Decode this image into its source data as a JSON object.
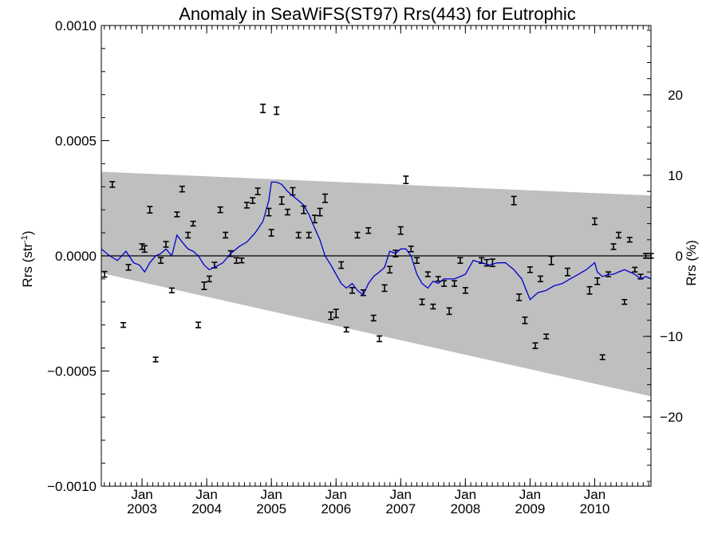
{
  "chart_data": {
    "type": "scatter",
    "title": "Anomaly in SeaWiFS(ST97) Rrs(443) for Eutrophic",
    "ylabel_left": {
      "main": "Rrs (str",
      "sup": "-1",
      "close": ")"
    },
    "ylabel_right": "Rrs (%)",
    "ylim": [
      -0.001,
      0.001
    ],
    "ylim_right": [
      -28.6,
      28.6
    ],
    "xlim": [
      2002.37,
      2010.87
    ],
    "left_ticks": [
      {
        "value": 0.001,
        "label": "0.0010"
      },
      {
        "value": 0.0005,
        "label": "0.0005"
      },
      {
        "value": 0.0,
        "label": "0.0000"
      },
      {
        "value": -0.0005,
        "label": "−0.0005"
      },
      {
        "value": -0.001,
        "label": "−0.0010"
      }
    ],
    "right_ticks": [
      {
        "value": 20,
        "label": "20"
      },
      {
        "value": 10,
        "label": "10"
      },
      {
        "value": 0,
        "label": "0"
      },
      {
        "value": -10,
        "label": "−10"
      },
      {
        "value": -20,
        "label": "−20"
      }
    ],
    "x_ticks": [
      {
        "value": 2003.0,
        "month": "Jan",
        "year": "2003"
      },
      {
        "value": 2004.0,
        "month": "Jan",
        "year": "2004"
      },
      {
        "value": 2005.0,
        "month": "Jan",
        "year": "2005"
      },
      {
        "value": 2006.0,
        "month": "Jan",
        "year": "2006"
      },
      {
        "value": 2007.0,
        "month": "Jan",
        "year": "2007"
      },
      {
        "value": 2008.0,
        "month": "Jan",
        "year": "2008"
      },
      {
        "value": 2009.0,
        "month": "Jan",
        "year": "2009"
      },
      {
        "value": 2010.0,
        "month": "Jan",
        "year": "2010"
      }
    ],
    "confidence_band": {
      "x": [
        2002.37,
        2010.87
      ],
      "upper": [
        0.000365,
        0.000262
      ],
      "lower": [
        -7.5e-05,
        -0.00061
      ]
    },
    "colors": {
      "band": "#bfbfbf",
      "line": "#0000cc",
      "points": "#000000",
      "zero_line": "#000000"
    },
    "points": {
      "x": [
        2002.42,
        2002.54,
        2002.71,
        2002.79,
        2003.0,
        2003.04,
        2003.12,
        2003.21,
        2003.29,
        2003.37,
        2003.46,
        2003.54,
        2003.62,
        2003.71,
        2003.79,
        2003.87,
        2003.96,
        2004.04,
        2004.12,
        2004.21,
        2004.29,
        2004.37,
        2004.46,
        2004.54,
        2004.62,
        2004.71,
        2004.79,
        2004.87,
        2004.96,
        2005.0,
        2005.08,
        2005.16,
        2005.25,
        2005.33,
        2005.42,
        2005.5,
        2005.58,
        2005.67,
        2005.75,
        2005.83,
        2005.92,
        2006.0,
        2006.08,
        2006.16,
        2006.25,
        2006.33,
        2006.42,
        2006.5,
        2006.58,
        2006.67,
        2006.75,
        2006.83,
        2006.92,
        2007.0,
        2007.08,
        2007.16,
        2007.25,
        2007.33,
        2007.42,
        2007.5,
        2007.58,
        2007.67,
        2007.75,
        2007.83,
        2007.92,
        2008.0,
        2008.25,
        2008.33,
        2008.42,
        2008.75,
        2008.83,
        2008.92,
        2009.0,
        2009.08,
        2009.16,
        2009.25,
        2009.33,
        2009.58,
        2009.92,
        2010.0,
        2010.04,
        2010.12,
        2010.21,
        2010.29,
        2010.37,
        2010.46,
        2010.54,
        2010.62,
        2010.71,
        2010.79,
        2010.87
      ],
      "y": [
        -8e-05,
        0.00031,
        -0.0003,
        -5e-05,
        4e-05,
        3e-05,
        0.0002,
        -0.00045,
        -2e-05,
        5e-05,
        -0.00015,
        0.00018,
        0.00029,
        9e-05,
        0.00014,
        -0.0003,
        -0.00013,
        -0.0001,
        -4e-05,
        0.0002,
        9e-05,
        1e-05,
        -2e-05,
        -2e-05,
        0.00022,
        0.00024,
        0.00028,
        0.00064,
        0.00019,
        0.0001,
        0.00063,
        0.00024,
        0.00019,
        0.00028,
        9e-05,
        0.0002,
        9e-05,
        0.00016,
        0.00019,
        0.00025,
        -0.00026,
        -0.00025,
        -4e-05,
        -0.00032,
        -0.00015,
        9e-05,
        -0.00016,
        0.00011,
        -0.00027,
        -0.00036,
        -0.00014,
        -6e-05,
        1e-05,
        0.00011,
        0.00033,
        3e-05,
        -2e-05,
        -0.0002,
        -8e-05,
        -0.00022,
        -0.0001,
        -0.00012,
        -0.00024,
        -0.00012,
        -2e-05,
        -0.00015,
        -2e-05,
        -3e-05,
        -3e-05,
        0.00024,
        -0.00018,
        -0.00028,
        -6e-05,
        -0.00039,
        -0.0001,
        -0.00035,
        -2e-05,
        -7e-05,
        -0.00015,
        0.00015,
        -0.00011,
        -0.00044,
        -8e-05,
        4e-05,
        9e-05,
        -0.0002,
        7e-05,
        -6e-05,
        -9e-05,
        0.0,
        0.0
      ],
      "err": [
        1.2e-05,
        1.2e-05,
        1e-05,
        1.2e-05,
        1.2e-05,
        1.4e-05,
        1.4e-05,
        1e-05,
        1.2e-05,
        1.2e-05,
        1e-05,
        1e-05,
        1.2e-05,
        1.2e-05,
        1e-05,
        1.2e-05,
        1.6e-05,
        1.2e-05,
        1.2e-05,
        1.2e-05,
        1.2e-05,
        1.2e-05,
        1.2e-05,
        1e-05,
        1.2e-05,
        1.2e-05,
        1.4e-05,
        1.8e-05,
        1.6e-05,
        1.4e-05,
        1.6e-05,
        1.6e-05,
        1.2e-05,
        1.6e-05,
        1.2e-05,
        1.6e-05,
        1.2e-05,
        1.6e-05,
        1.6e-05,
        1.8e-05,
        1.6e-05,
        1.8e-05,
        1.4e-05,
        1e-05,
        1.2e-05,
        1.2e-05,
        1.2e-05,
        1.2e-05,
        1.2e-05,
        1.2e-05,
        1.4e-05,
        1.4e-05,
        1.4e-05,
        1.6e-05,
        1.6e-05,
        1.2e-05,
        1.2e-05,
        1.2e-05,
        1e-05,
        1e-05,
        1e-05,
        1.2e-05,
        1.4e-05,
        1.2e-05,
        1.2e-05,
        1.2e-05,
        1.2e-05,
        1.4e-05,
        1.6e-05,
        1.8e-05,
        1.4e-05,
        1.4e-05,
        1.2e-05,
        1.2e-05,
        1.2e-05,
        1e-05,
        1.8e-05,
        1.6e-05,
        1.6e-05,
        1.4e-05,
        1.4e-05,
        1e-05,
        1e-05,
        1.2e-05,
        1.2e-05,
        1e-05,
        1e-05,
        1e-05,
        1e-05,
        1e-05,
        1e-05
      ]
    },
    "running_mean": {
      "x": [
        2002.37,
        2002.5,
        2002.62,
        2002.75,
        2002.87,
        2002.96,
        2003.04,
        2003.12,
        2003.21,
        2003.29,
        2003.37,
        2003.46,
        2003.54,
        2003.62,
        2003.71,
        2003.79,
        2003.87,
        2003.96,
        2004.04,
        2004.12,
        2004.25,
        2004.37,
        2004.5,
        2004.62,
        2004.75,
        2004.87,
        2004.96,
        2005.0,
        2005.08,
        2005.16,
        2005.25,
        2005.33,
        2005.42,
        2005.5,
        2005.58,
        2005.67,
        2005.75,
        2005.83,
        2005.92,
        2006.0,
        2006.08,
        2006.16,
        2006.25,
        2006.33,
        2006.42,
        2006.5,
        2006.58,
        2006.67,
        2006.75,
        2006.83,
        2006.92,
        2007.0,
        2007.08,
        2007.16,
        2007.25,
        2007.33,
        2007.42,
        2007.5,
        2007.58,
        2007.67,
        2007.75,
        2007.83,
        2007.92,
        2008.0,
        2008.12,
        2008.25,
        2008.37,
        2008.5,
        2008.62,
        2008.75,
        2008.87,
        2009.0,
        2009.12,
        2009.25,
        2009.37,
        2009.5,
        2009.62,
        2009.75,
        2009.87,
        2010.0,
        2010.04,
        2010.12,
        2010.21,
        2010.29,
        2010.37,
        2010.46,
        2010.54,
        2010.62,
        2010.71,
        2010.79,
        2010.87
      ],
      "y": [
        3e-05,
        0.0,
        -2e-05,
        2e-05,
        -3e-05,
        -4e-05,
        -7e-05,
        -3e-05,
        0.0,
        1e-05,
        3e-05,
        0.0,
        9e-05,
        6e-05,
        3e-05,
        2e-05,
        0.0,
        -4e-05,
        -6e-05,
        -5e-05,
        -3e-05,
        1e-05,
        4e-05,
        6e-05,
        0.0001,
        0.00015,
        0.00024,
        0.00032,
        0.00032,
        0.00031,
        0.00028,
        0.00026,
        0.00024,
        0.00022,
        0.00018,
        0.00012,
        7e-05,
        0.0,
        -4e-05,
        -8e-05,
        -0.00012,
        -0.00014,
        -0.00012,
        -0.00015,
        -0.00017,
        -0.00012,
        -9e-05,
        -7e-05,
        -5e-05,
        2e-05,
        1e-05,
        3e-05,
        3e-05,
        0.0,
        -8e-05,
        -0.00012,
        -0.00014,
        -0.00011,
        -0.00012,
        -0.0001,
        -0.0001,
        -0.0001,
        -9e-05,
        -8e-05,
        -2e-05,
        -3e-05,
        -4e-05,
        -3e-05,
        -3e-05,
        -6e-05,
        -0.0001,
        -0.00019,
        -0.00016,
        -0.00015,
        -0.00013,
        -0.00012,
        -0.0001,
        -8e-05,
        -6e-05,
        -3e-05,
        -7e-05,
        -9e-05,
        -8e-05,
        -8e-05,
        -7e-05,
        -6e-05,
        -7e-05,
        -8e-05,
        -0.0001,
        -9e-05,
        -0.0001
      ]
    }
  }
}
